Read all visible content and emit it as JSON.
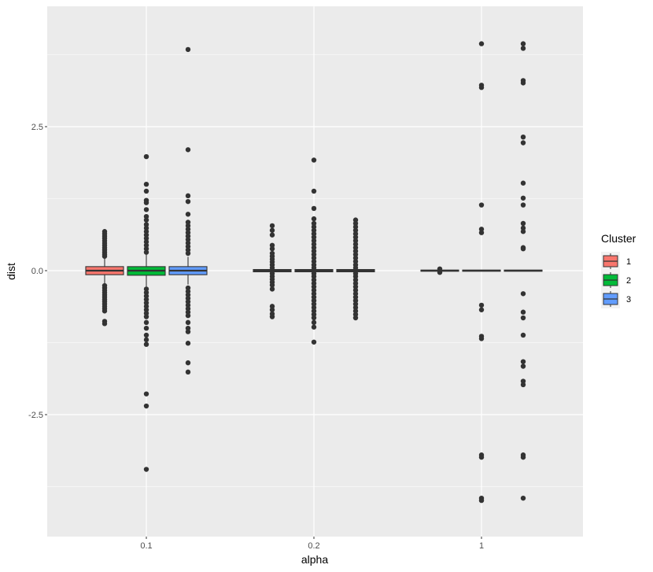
{
  "chart_data": {
    "type": "box",
    "xlabel": "alpha",
    "ylabel": "dist",
    "categories": [
      "0.1",
      "0.2",
      "1"
    ],
    "y_ticks": [
      -2.5,
      0.0,
      2.5
    ],
    "y_tick_labels": [
      "-2.5",
      "0.0",
      "2.5"
    ],
    "ylim": [
      -4.6,
      4.6
    ],
    "legend": {
      "title": "Cluster",
      "position": "right"
    },
    "grid": true,
    "series": [
      {
        "name": "1",
        "color": "#F8766D",
        "boxes": [
          {
            "category": "0.1",
            "q1": -0.07,
            "median": 0.0,
            "q3": 0.07,
            "whisker_low": -0.22,
            "whisker_high": 0.22,
            "outliers": [
              0.68,
              0.64,
              0.6,
              0.56,
              0.52,
              0.48,
              0.44,
              0.4,
              0.36,
              0.32,
              0.28,
              0.25,
              -0.26,
              -0.3,
              -0.34,
              -0.38,
              -0.42,
              -0.46,
              -0.5,
              -0.54,
              -0.58,
              -0.62,
              -0.66,
              -0.7,
              -0.88,
              -0.92
            ]
          },
          {
            "category": "0.2",
            "q1": -0.02,
            "median": 0.0,
            "q3": 0.02,
            "whisker_low": -0.02,
            "whisker_high": 0.02,
            "outliers": [
              0.78,
              0.7,
              0.62,
              0.44,
              0.38,
              0.3,
              0.25,
              0.2,
              0.15,
              0.1,
              0.05,
              -0.05,
              -0.1,
              -0.15,
              -0.2,
              -0.25,
              -0.32,
              -0.62,
              -0.68,
              -0.75,
              -0.8
            ]
          },
          {
            "category": "1",
            "q1": -0.01,
            "median": 0.0,
            "q3": 0.01,
            "whisker_low": -0.01,
            "whisker_high": 0.01,
            "outliers": [
              0.03,
              -0.03
            ]
          }
        ]
      },
      {
        "name": "2",
        "color": "#00BA38",
        "boxes": [
          {
            "category": "0.1",
            "q1": -0.08,
            "median": 0.0,
            "q3": 0.07,
            "whisker_low": -0.28,
            "whisker_high": 0.28,
            "outliers": [
              1.98,
              1.5,
              1.38,
              1.22,
              1.18,
              1.06,
              0.94,
              0.88,
              0.8,
              0.74,
              0.68,
              0.62,
              0.56,
              0.5,
              0.44,
              0.38,
              0.32,
              -0.32,
              -0.38,
              -0.44,
              -0.5,
              -0.56,
              -0.62,
              -0.68,
              -0.74,
              -0.8,
              -0.9,
              -1.0,
              -1.12,
              -1.2,
              -1.28,
              -2.14,
              -2.35,
              -3.45
            ]
          },
          {
            "category": "0.2",
            "q1": -0.02,
            "median": 0.0,
            "q3": 0.02,
            "whisker_low": -0.02,
            "whisker_high": 0.02,
            "outliers": [
              1.92,
              1.38,
              1.08,
              0.9,
              0.82,
              0.76,
              0.7,
              0.64,
              0.58,
              0.52,
              0.46,
              0.4,
              0.34,
              0.28,
              0.22,
              0.16,
              0.1,
              0.05,
              -0.05,
              -0.1,
              -0.16,
              -0.22,
              -0.28,
              -0.34,
              -0.4,
              -0.46,
              -0.52,
              -0.58,
              -0.64,
              -0.7,
              -0.76,
              -0.82,
              -0.9,
              -0.98,
              -1.24
            ]
          },
          {
            "category": "1",
            "q1": -0.01,
            "median": 0.0,
            "q3": 0.01,
            "whisker_low": -0.01,
            "whisker_high": 0.01,
            "outliers": [
              3.94,
              3.22,
              3.18,
              1.14,
              0.72,
              0.66,
              -0.6,
              -0.68,
              -1.14,
              -1.18,
              -3.2,
              -3.24,
              -3.95,
              -3.99
            ]
          }
        ]
      },
      {
        "name": "3",
        "color": "#619CFF",
        "boxes": [
          {
            "category": "0.1",
            "q1": -0.07,
            "median": 0.0,
            "q3": 0.07,
            "whisker_low": -0.24,
            "whisker_high": 0.24,
            "outliers": [
              3.84,
              2.1,
              1.3,
              1.2,
              0.98,
              0.84,
              0.78,
              0.72,
              0.66,
              0.6,
              0.54,
              0.48,
              0.42,
              0.36,
              0.3,
              -0.3,
              -0.36,
              -0.42,
              -0.48,
              -0.54,
              -0.6,
              -0.66,
              -0.72,
              -0.78,
              -0.9,
              -1.0,
              -1.06,
              -1.26,
              -1.6,
              -1.76
            ]
          },
          {
            "category": "0.2",
            "q1": -0.02,
            "median": 0.0,
            "q3": 0.02,
            "whisker_low": -0.02,
            "whisker_high": 0.02,
            "outliers": [
              0.88,
              0.82,
              0.76,
              0.7,
              0.64,
              0.58,
              0.52,
              0.46,
              0.4,
              0.34,
              0.28,
              0.22,
              0.16,
              0.1,
              0.05,
              -0.05,
              -0.1,
              -0.16,
              -0.22,
              -0.28,
              -0.34,
              -0.4,
              -0.46,
              -0.52,
              -0.58,
              -0.64,
              -0.7,
              -0.76,
              -0.82
            ]
          },
          {
            "category": "1",
            "q1": -0.01,
            "median": 0.0,
            "q3": 0.01,
            "whisker_low": -0.01,
            "whisker_high": 0.01,
            "outliers": [
              3.94,
              3.86,
              3.3,
              3.26,
              2.32,
              2.22,
              1.52,
              1.26,
              1.14,
              0.82,
              0.74,
              0.68,
              0.4,
              0.38,
              -0.4,
              -0.72,
              -0.82,
              -1.12,
              -1.58,
              -1.66,
              -1.92,
              -1.98,
              -3.2,
              -3.24,
              -3.95
            ]
          }
        ]
      }
    ]
  }
}
